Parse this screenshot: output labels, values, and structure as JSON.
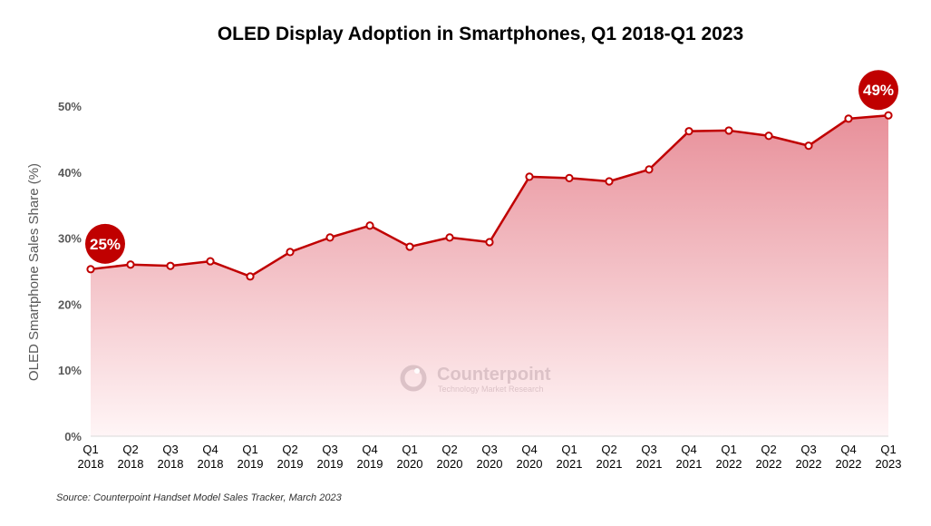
{
  "chart_data": {
    "type": "area",
    "title": "OLED Display Adoption in Smartphones, Q1 2018-Q1 2023",
    "ylabel": "OLED Smartphone Sales Share (%)",
    "xlabel": "",
    "ylim": [
      0,
      50
    ],
    "yticks": [
      "0%",
      "10%",
      "20%",
      "30%",
      "40%",
      "50%"
    ],
    "ytick_values": [
      0,
      10,
      20,
      30,
      40,
      50
    ],
    "grid": false,
    "categories": [
      [
        "Q1",
        "2018"
      ],
      [
        "Q2",
        "2018"
      ],
      [
        "Q3",
        "2018"
      ],
      [
        "Q4",
        "2018"
      ],
      [
        "Q1",
        "2019"
      ],
      [
        "Q2",
        "2019"
      ],
      [
        "Q3",
        "2019"
      ],
      [
        "Q4",
        "2019"
      ],
      [
        "Q1",
        "2020"
      ],
      [
        "Q2",
        "2020"
      ],
      [
        "Q3",
        "2020"
      ],
      [
        "Q4",
        "2020"
      ],
      [
        "Q1",
        "2021"
      ],
      [
        "Q2",
        "2021"
      ],
      [
        "Q3",
        "2021"
      ],
      [
        "Q4",
        "2021"
      ],
      [
        "Q1",
        "2022"
      ],
      [
        "Q2",
        "2022"
      ],
      [
        "Q3",
        "2022"
      ],
      [
        "Q4",
        "2022"
      ],
      [
        "Q1",
        "2023"
      ]
    ],
    "values": [
      25.3,
      26.0,
      25.8,
      26.5,
      24.2,
      27.9,
      30.1,
      31.9,
      28.7,
      30.1,
      29.4,
      39.3,
      39.1,
      38.6,
      40.4,
      46.2,
      46.3,
      45.5,
      44.0,
      48.1,
      48.6
    ],
    "annotations": [
      {
        "index": 0,
        "text": "25%"
      },
      {
        "index": 20,
        "text": "49%"
      }
    ],
    "colors": {
      "line": "#c00000",
      "fill_top": "#e8909a",
      "fill_bottom": "#fff5f6",
      "bubble": "#c00000"
    },
    "source": "Source: Counterpoint  Handset Model  Sales Tracker, March  2023"
  },
  "watermark": {
    "brand": "Counterpoint",
    "tagline": "Technology Market Research"
  }
}
